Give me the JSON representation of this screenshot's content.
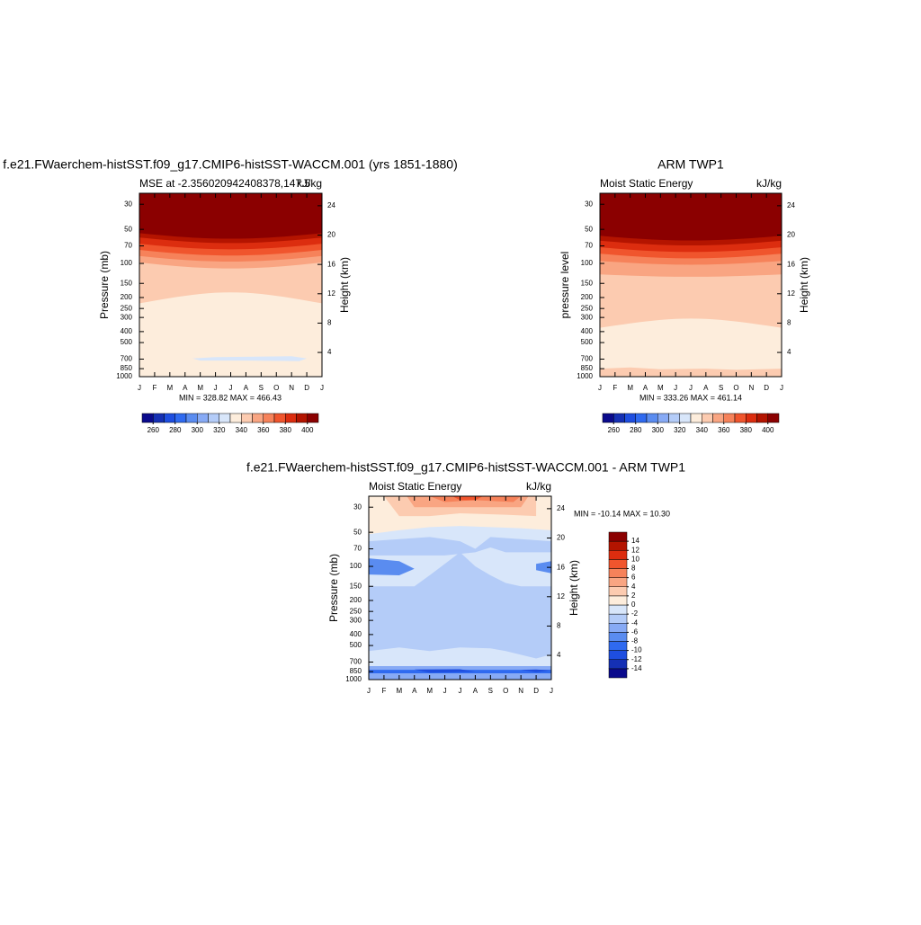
{
  "chart_data": [
    {
      "type": "contour",
      "title": "f.e21.FWaerchem-histSST.f09_g17.CMIP6-histSST-WACCM.001 (yrs 1851-1880)",
      "left_title": "MSE at -2.356020942408378,147.5",
      "right_title": "kJ/kg",
      "ylabel": "Pressure (mb)",
      "y2label": "Height (km)",
      "categories": [
        "J",
        "F",
        "M",
        "A",
        "M",
        "J",
        "J",
        "A",
        "S",
        "O",
        "N",
        "D",
        "J"
      ],
      "ylim": [
        1000,
        24
      ],
      "ylog": true,
      "yticks": [
        30,
        50,
        70,
        100,
        150,
        200,
        250,
        300,
        400,
        500,
        700,
        850,
        1000
      ],
      "y2lim": [
        0.7,
        25.7
      ],
      "y2ticks": [
        4,
        8,
        12,
        16,
        20,
        24
      ],
      "annotation": "MIN = 328.82 MAX = 466.43",
      "colorbar": {
        "orientation": "horizontal",
        "colors": [
          "#0a0a8c",
          "#1530b4",
          "#1e4ee0",
          "#2f6af0",
          "#5a8cf0",
          "#87aaf5",
          "#b4ccf8",
          "#d8e6fa",
          "#fdeddc",
          "#fccbb0",
          "#f9a582",
          "#f6825a",
          "#f0552d",
          "#dc2d0f",
          "#b41400",
          "#8b0000"
        ],
        "lim": [
          250,
          410
        ],
        "ticks": [
          260,
          280,
          300,
          320,
          340,
          360,
          380,
          400
        ]
      }
    },
    {
      "type": "contour",
      "title": "ARM TWP1",
      "left_title": "Moist Static Energy",
      "right_title": "kJ/kg",
      "ylabel": "pressure level",
      "y2label": "Height (km)",
      "categories": [
        "J",
        "F",
        "M",
        "A",
        "M",
        "J",
        "J",
        "A",
        "S",
        "O",
        "N",
        "D",
        "J"
      ],
      "ylim": [
        1000,
        24
      ],
      "ylog": true,
      "yticks": [
        30,
        50,
        70,
        100,
        150,
        200,
        250,
        300,
        400,
        500,
        700,
        850,
        1000
      ],
      "y2lim": [
        0.7,
        25.7
      ],
      "y2ticks": [
        4,
        8,
        12,
        16,
        20,
        24
      ],
      "annotation": "MIN = 333.26 MAX = 461.14",
      "colorbar": {
        "orientation": "horizontal",
        "colors": [
          "#0a0a8c",
          "#1530b4",
          "#1e4ee0",
          "#2f6af0",
          "#5a8cf0",
          "#87aaf5",
          "#b4ccf8",
          "#d8e6fa",
          "#fdeddc",
          "#fccbb0",
          "#f9a582",
          "#f6825a",
          "#f0552d",
          "#dc2d0f",
          "#b41400",
          "#8b0000"
        ],
        "lim": [
          250,
          410
        ],
        "ticks": [
          260,
          280,
          300,
          320,
          340,
          360,
          380,
          400
        ]
      }
    },
    {
      "type": "contour",
      "title": "f.e21.FWaerchem-histSST.f09_g17.CMIP6-histSST-WACCM.001 - ARM TWP1",
      "left_title": "Moist Static Energy",
      "right_title": "kJ/kg",
      "ylabel": "Pressure (mb)",
      "y2label": "Height (km)",
      "categories": [
        "J",
        "F",
        "M",
        "A",
        "M",
        "J",
        "J",
        "A",
        "S",
        "O",
        "N",
        "D",
        "J"
      ],
      "ylim": [
        1000,
        24
      ],
      "ylog": true,
      "yticks": [
        30,
        50,
        70,
        100,
        150,
        200,
        250,
        300,
        400,
        500,
        700,
        850,
        1000
      ],
      "y2lim": [
        0.7,
        25.7
      ],
      "y2ticks": [
        4,
        8,
        12,
        16,
        20,
        24
      ],
      "annotation": "MIN = -10.14 MAX =  10.30",
      "colorbar": {
        "orientation": "vertical",
        "colors": [
          "#0a0a8c",
          "#1530b4",
          "#1e4ee0",
          "#2f6af0",
          "#5a8cf0",
          "#87aaf5",
          "#b4ccf8",
          "#d8e6fa",
          "#fdeddc",
          "#fccbb0",
          "#f9a582",
          "#f6825a",
          "#f0552d",
          "#dc2d0f",
          "#b41400",
          "#8b0000"
        ],
        "lim": [
          -16,
          16
        ],
        "ticks": [
          -14,
          -12,
          -10,
          -8,
          -6,
          -4,
          -2,
          0,
          2,
          4,
          6,
          8,
          10,
          12,
          14
        ]
      }
    }
  ]
}
